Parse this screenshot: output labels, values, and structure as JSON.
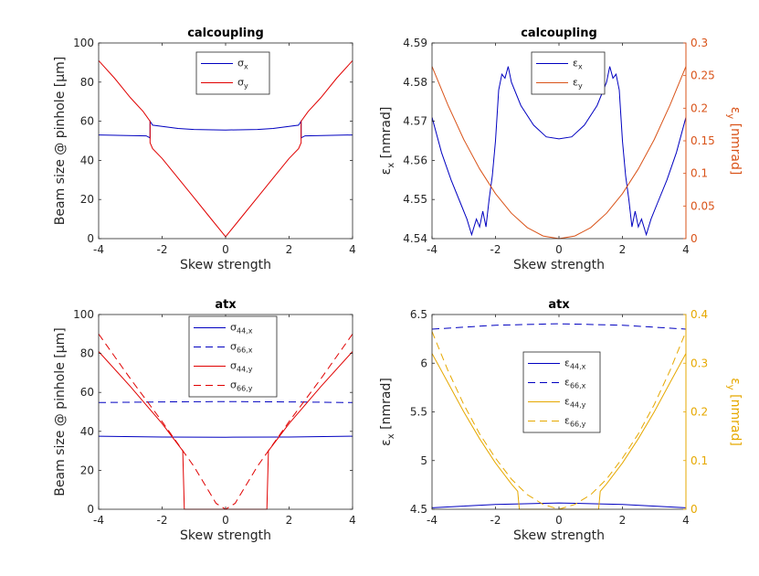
{
  "chart_data": [
    {
      "type": "line",
      "title": "calcoupling",
      "xlabel": "Skew strength",
      "ylabel": "Beam size @ pinhole [μm]",
      "xlim": [
        -4,
        4
      ],
      "ylim": [
        0,
        100
      ],
      "xticks": [
        "-4",
        "-2",
        "0",
        "2",
        "4"
      ],
      "yticks": [
        "0",
        "20",
        "40",
        "60",
        "80",
        "100"
      ],
      "legend": "top-center",
      "series": [
        {
          "name": "σx",
          "color": "#0000c0",
          "dash": "solid",
          "x": [
            -4,
            -2.5,
            -2.38,
            -2.38,
            -2.3,
            -1.5,
            -1,
            0,
            1,
            1.5,
            2.3,
            2.38,
            2.38,
            2.5,
            4
          ],
          "y": [
            53,
            52.5,
            51.5,
            60,
            58,
            56.3,
            55.8,
            55.5,
            55.8,
            56.3,
            58,
            60,
            51.5,
            52.5,
            53
          ]
        },
        {
          "name": "σy",
          "color": "#e00000",
          "dash": "solid",
          "x": [
            -4,
            -3.5,
            -3,
            -2.6,
            -2.38,
            -2.38,
            -2.3,
            -2,
            -1.5,
            -1,
            -0.5,
            0,
            0.5,
            1,
            1.5,
            2,
            2.3,
            2.38,
            2.38,
            2.6,
            3,
            3.5,
            4
          ],
          "y": [
            91,
            82,
            72,
            65,
            60,
            49,
            46,
            41,
            31,
            21,
            11,
            1,
            11,
            21,
            31,
            41,
            46,
            49,
            60,
            65,
            72,
            82,
            91
          ]
        }
      ]
    },
    {
      "type": "line",
      "title": "calcoupling",
      "xlabel": "Skew strength",
      "ylabel": "εx [nmrad]",
      "ylabel_right": "εy [nmrad]",
      "xlim": [
        -4,
        4
      ],
      "ylim": [
        4.54,
        4.59
      ],
      "ylim_right": [
        0,
        0.3
      ],
      "xticks": [
        "-4",
        "-2",
        "0",
        "2",
        "4"
      ],
      "yticks": [
        "4.54",
        "4.55",
        "4.56",
        "4.57",
        "4.58",
        "4.59"
      ],
      "yticks_right": [
        "0",
        "0.05",
        "0.1",
        "0.15",
        "0.2",
        "0.25",
        "0.3"
      ],
      "legend": "top-right",
      "series": [
        {
          "name": "εx",
          "color": "#0000c0",
          "dash": "solid",
          "axis": "left",
          "x": [
            -4,
            -3.7,
            -3.4,
            -3.1,
            -2.9,
            -2.75,
            -2.6,
            -2.5,
            -2.4,
            -2.3,
            -2.2,
            -2.1,
            -2.0,
            -1.9,
            -1.8,
            -1.7,
            -1.6,
            -1.5,
            -1.2,
            -0.8,
            -0.4,
            0,
            0.4,
            0.8,
            1.2,
            1.5,
            1.6,
            1.7,
            1.8,
            1.9,
            2.0,
            2.1,
            2.2,
            2.3,
            2.4,
            2.5,
            2.6,
            2.75,
            2.9,
            3.1,
            3.4,
            3.7,
            4
          ],
          "y": [
            4.571,
            4.562,
            4.555,
            4.549,
            4.545,
            4.541,
            4.545,
            4.543,
            4.547,
            4.543,
            4.55,
            4.556,
            4.565,
            4.578,
            4.582,
            4.581,
            4.584,
            4.58,
            4.574,
            4.569,
            4.566,
            4.5655,
            4.566,
            4.569,
            4.574,
            4.58,
            4.584,
            4.581,
            4.582,
            4.578,
            4.565,
            4.556,
            4.55,
            4.543,
            4.547,
            4.543,
            4.545,
            4.541,
            4.545,
            4.549,
            4.555,
            4.562,
            4.571
          ]
        },
        {
          "name": "εy",
          "color": "#d95319",
          "dash": "solid",
          "axis": "right",
          "x": [
            -4,
            -3.5,
            -3,
            -2.5,
            -2,
            -1.5,
            -1,
            -0.5,
            0,
            0.5,
            1,
            1.5,
            2,
            2.5,
            3,
            3.5,
            4
          ],
          "y": [
            0.264,
            0.205,
            0.152,
            0.107,
            0.069,
            0.039,
            0.017,
            0.004,
            0.0,
            0.004,
            0.017,
            0.039,
            0.069,
            0.107,
            0.152,
            0.205,
            0.264
          ]
        }
      ]
    },
    {
      "type": "line",
      "title": "atx",
      "xlabel": "Skew strength",
      "ylabel": "Beam size @ pinhole [μm]",
      "xlim": [
        -4,
        4
      ],
      "ylim": [
        0,
        100
      ],
      "xticks": [
        "-4",
        "-2",
        "0",
        "2",
        "4"
      ],
      "yticks": [
        "0",
        "20",
        "40",
        "60",
        "80",
        "100"
      ],
      "legend": "top-center",
      "series": [
        {
          "name": "σ44,x",
          "color": "#0000c0",
          "dash": "solid",
          "x": [
            -4,
            -2,
            0,
            2,
            4
          ],
          "y": [
            37.5,
            37.1,
            37.0,
            37.1,
            37.5
          ]
        },
        {
          "name": "σ66,x",
          "color": "#0000c0",
          "dash": "dashed",
          "x": [
            -4,
            -2,
            0,
            2,
            4
          ],
          "y": [
            54.8,
            55.1,
            55.3,
            55.1,
            54.8
          ]
        },
        {
          "name": "σ44,y",
          "color": "#e00000",
          "dash": "solid",
          "x": [
            -4,
            -3,
            -2,
            -1.35,
            -1.3,
            -1.25,
            1.25,
            1.3,
            1.35,
            2,
            3,
            4
          ],
          "y": [
            81,
            63,
            44,
            30,
            0,
            0,
            0,
            0,
            30,
            44,
            63,
            81
          ]
        },
        {
          "name": "σ66,y",
          "color": "#e00000",
          "dash": "dashed",
          "x": [
            -4,
            -3,
            -2,
            -1,
            -0.3,
            0,
            0.3,
            1,
            2,
            3,
            4
          ],
          "y": [
            90,
            67,
            45,
            22,
            3,
            0,
            3,
            22,
            45,
            67,
            90
          ]
        }
      ]
    },
    {
      "type": "line",
      "title": "atx",
      "xlabel": "Skew strength",
      "ylabel": "εx [nmrad]",
      "ylabel_right": "εy [nmrad]",
      "xlim": [
        -4,
        4
      ],
      "ylim": [
        4.5,
        6.5
      ],
      "ylim_right": [
        0,
        0.4
      ],
      "xticks": [
        "-4",
        "-2",
        "0",
        "2",
        "4"
      ],
      "yticks": [
        "4.5",
        "5",
        "5.5",
        "6",
        "6.5"
      ],
      "yticks_right": [
        "0",
        "0.1",
        "0.2",
        "0.3",
        "0.4"
      ],
      "legend": "center",
      "series": [
        {
          "name": "ε44,x",
          "color": "#0000c0",
          "dash": "solid",
          "axis": "left",
          "x": [
            -4,
            -2,
            0,
            2,
            4
          ],
          "y": [
            4.515,
            4.55,
            4.565,
            4.55,
            4.515
          ]
        },
        {
          "name": "ε66,x",
          "color": "#0000c0",
          "dash": "dashed",
          "axis": "left",
          "x": [
            -4,
            -2,
            0,
            2,
            4
          ],
          "y": [
            6.35,
            6.39,
            6.405,
            6.39,
            6.35
          ]
        },
        {
          "name": "ε44,y",
          "color": "#e6a800",
          "dash": "solid",
          "axis": "right",
          "x": [
            -4,
            -3.5,
            -3,
            -2.5,
            -2,
            -1.5,
            -1.3,
            -1.25,
            1.25,
            1.3,
            1.5,
            2,
            2.5,
            3,
            3.5,
            4
          ],
          "y": [
            0.32,
            0.26,
            0.2,
            0.145,
            0.095,
            0.052,
            0.037,
            0.0,
            0.0,
            0.037,
            0.052,
            0.095,
            0.145,
            0.2,
            0.26,
            0.32
          ]
        },
        {
          "name": "ε66,y",
          "color": "#e6a800",
          "dash": "dashed",
          "axis": "right",
          "x": [
            -4,
            -3.5,
            -3,
            -2.5,
            -2,
            -1.5,
            -1,
            -0.5,
            0,
            0.5,
            1,
            1.5,
            2,
            2.5,
            3,
            3.5,
            4
          ],
          "y": [
            0.365,
            0.285,
            0.215,
            0.155,
            0.105,
            0.062,
            0.03,
            0.01,
            0.0,
            0.01,
            0.03,
            0.062,
            0.105,
            0.155,
            0.215,
            0.285,
            0.365
          ]
        }
      ]
    }
  ]
}
